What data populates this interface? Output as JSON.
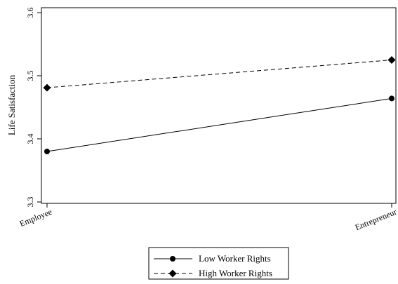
{
  "chart_data": {
    "type": "line",
    "categories": [
      "Employee",
      "Entrepreneur"
    ],
    "ylabel": "Life Satisfaction",
    "xlabel": "",
    "ylim": [
      3.3,
      3.6
    ],
    "yticks": [
      "3.3",
      "3.4",
      "3.5",
      "3.6"
    ],
    "grid": false,
    "legend": "bottom",
    "series": [
      {
        "name": "Low Worker Rights",
        "values": [
          3.38,
          3.464
        ],
        "line": "solid",
        "marker": "circle",
        "color": "#000000"
      },
      {
        "name": "High Worker Rights",
        "values": [
          3.481,
          3.525
        ],
        "line": "dashed",
        "marker": "diamond",
        "color": "#000000"
      }
    ]
  }
}
